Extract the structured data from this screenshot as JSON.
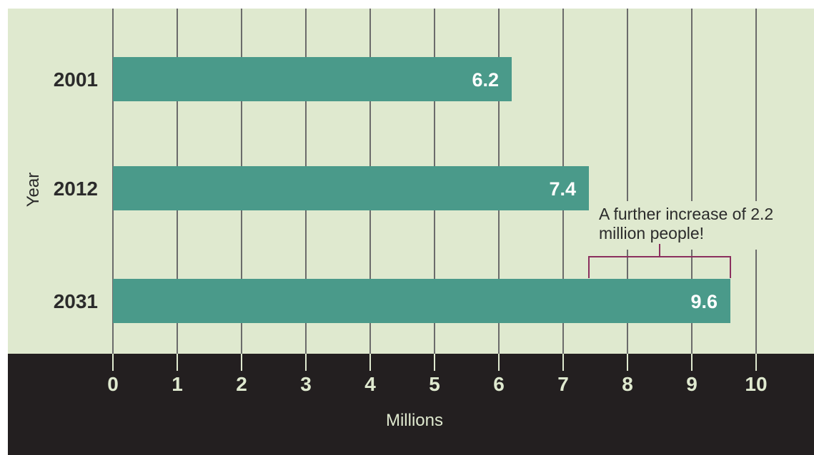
{
  "colors": {
    "plot_background": "#dfe9cf",
    "axis_band": "#231f20",
    "bar": "#4a9a8a",
    "gridline": "#6b6b6b",
    "bracket": "#8b2f5e",
    "label_dark": "#2b2b2b",
    "label_light": "#dfe9cf"
  },
  "chart_data": {
    "type": "bar",
    "orientation": "horizontal",
    "categories": [
      "2001",
      "2012",
      "2031"
    ],
    "values": [
      6.2,
      7.4,
      9.6
    ],
    "data_labels": [
      "6.2",
      "7.4",
      "9.6"
    ],
    "xlabel": "Millions",
    "ylabel": "Year",
    "xlim": [
      0,
      10
    ],
    "xticks": [
      "0",
      "1",
      "2",
      "3",
      "4",
      "5",
      "6",
      "7",
      "8",
      "9",
      "10"
    ],
    "grid": true,
    "annotation": {
      "lines": [
        "A further increase of 2.2",
        "million people!"
      ],
      "from": 7.4,
      "to": 9.6
    }
  }
}
